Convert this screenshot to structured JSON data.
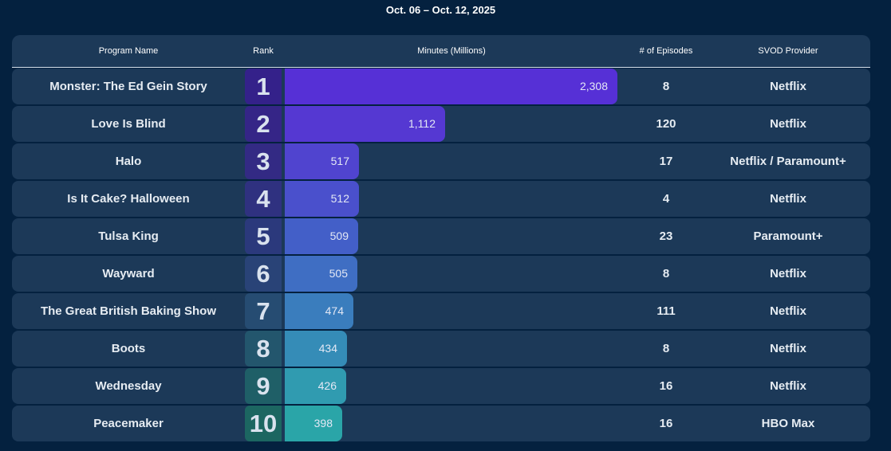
{
  "header": {
    "date_range": "Oct. 06 – Oct. 12, 2025",
    "columns": {
      "program": "Program Name",
      "rank": "Rank",
      "minutes": "Minutes (Millions)",
      "episodes": "# of Episodes",
      "provider": "SVOD Provider"
    }
  },
  "colors": {
    "page_bg": "#04213f",
    "row_bg": "#1c3958"
  },
  "chart_data": {
    "type": "bar",
    "title": "Oct. 06 – Oct. 12, 2025",
    "xlabel": "Minutes (Millions)",
    "ylabel": "Program Name",
    "xlim": [
      0,
      2308
    ],
    "categories": [
      "Monster: The Ed Gein Story",
      "Love Is Blind",
      "Halo",
      "Is It Cake? Halloween",
      "Tulsa King",
      "Wayward",
      "The Great British Baking Show",
      "Boots",
      "Wednesday",
      "Peacemaker"
    ],
    "values": [
      2308,
      1112,
      517,
      512,
      509,
      505,
      474,
      434,
      426,
      398
    ],
    "rows": [
      {
        "program": "Monster: The Ed Gein Story",
        "rank": "1",
        "minutes": 2308,
        "minutes_label": "2,308",
        "episodes": "8",
        "provider": "Netflix",
        "bar_color": "#5630d6",
        "rank_color": "#34218a"
      },
      {
        "program": "Love Is Blind",
        "rank": "2",
        "minutes": 1112,
        "minutes_label": "1,112",
        "episodes": "120",
        "provider": "Netflix",
        "bar_color": "#5538d2",
        "rank_color": "#352587"
      },
      {
        "program": "Halo",
        "rank": "3",
        "minutes": 517,
        "minutes_label": "517",
        "episodes": "17",
        "provider": "Netflix / Paramount+",
        "bar_color": "#5044cf",
        "rank_color": "#332a84"
      },
      {
        "program": "Is It Cake? Halloween",
        "rank": "4",
        "minutes": 512,
        "minutes_label": "512",
        "episodes": "4",
        "provider": "Netflix",
        "bar_color": "#4a50cc",
        "rank_color": "#2f3180"
      },
      {
        "program": "Tulsa King",
        "rank": "5",
        "minutes": 509,
        "minutes_label": "509",
        "episodes": "23",
        "provider": "Paramount+",
        "bar_color": "#435fc8",
        "rank_color": "#2b397c"
      },
      {
        "program": "Wayward",
        "rank": "6",
        "minutes": 505,
        "minutes_label": "505",
        "episodes": "8",
        "provider": "Netflix",
        "bar_color": "#3f6ec3",
        "rank_color": "#294377"
      },
      {
        "program": "The Great British Baking Show",
        "rank": "7",
        "minutes": 474,
        "minutes_label": "474",
        "episodes": "111",
        "provider": "Netflix",
        "bar_color": "#3a7dbd",
        "rank_color": "#264c72"
      },
      {
        "program": "Boots",
        "rank": "8",
        "minutes": 434,
        "minutes_label": "434",
        "episodes": "8",
        "provider": "Netflix",
        "bar_color": "#358cb7",
        "rank_color": "#23566d"
      },
      {
        "program": "Wednesday",
        "rank": "9",
        "minutes": 426,
        "minutes_label": "426",
        "episodes": "16",
        "provider": "Netflix",
        "bar_color": "#309bb0",
        "rank_color": "#1f5f67"
      },
      {
        "program": "Peacemaker",
        "rank": "10",
        "minutes": 398,
        "minutes_label": "398",
        "episodes": "16",
        "provider": "HBO Max",
        "bar_color": "#2aa5a8",
        "rank_color": "#1c6661"
      }
    ]
  }
}
